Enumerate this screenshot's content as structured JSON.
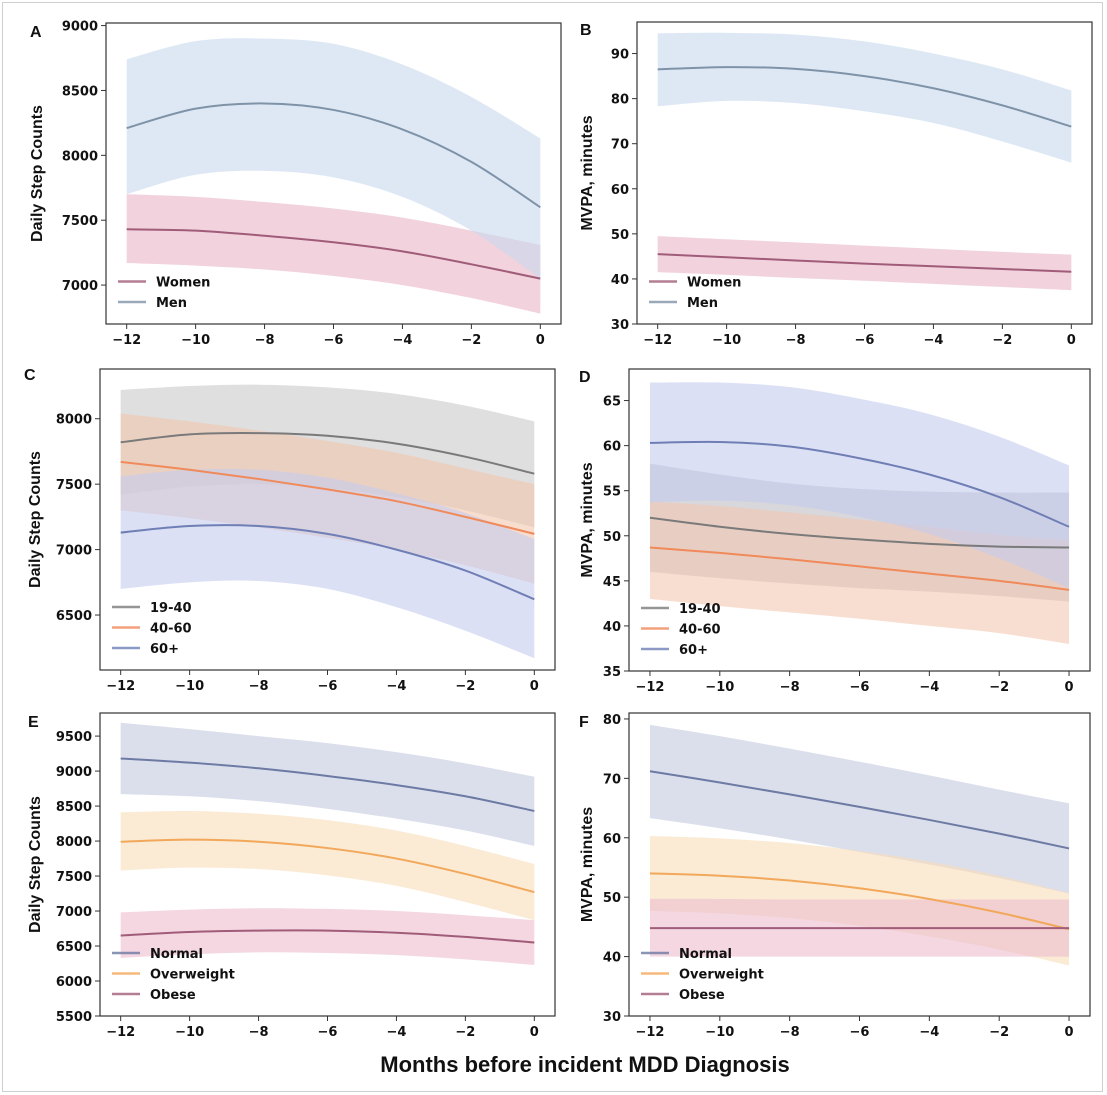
{
  "figure": {
    "xlabel": "Months before incident MDD Diagnosis"
  },
  "chart_data": [
    {
      "panel": "A",
      "type": "line",
      "ylabel": "Daily Step Counts",
      "xlabel": "",
      "xlim": [
        -12.6,
        0.6
      ],
      "ylim": [
        6700,
        9020
      ],
      "xticks": [
        -12,
        -10,
        -8,
        -6,
        -4,
        -2,
        0
      ],
      "xtick_labels": [
        "−12",
        "−10",
        "−8",
        "−6",
        "−4",
        "−2",
        "0"
      ],
      "yticks": [
        7000,
        7500,
        8000,
        8500,
        9000
      ],
      "legend": "lower-left",
      "x": [
        -12,
        -10,
        -8,
        -6,
        -4,
        -2,
        0
      ],
      "series": [
        {
          "name": "Women",
          "color": "#a05c78",
          "band_color": "#e8b4c6",
          "values": [
            7430,
            7420,
            7380,
            7330,
            7260,
            7160,
            7050
          ],
          "lower": [
            7170,
            7150,
            7120,
            7070,
            7000,
            6900,
            6780
          ],
          "upper": [
            7700,
            7680,
            7640,
            7590,
            7520,
            7420,
            7310
          ]
        },
        {
          "name": "Men",
          "color": "#7f93a8",
          "band_color": "#c8d8ee",
          "values": [
            8210,
            8360,
            8400,
            8350,
            8200,
            7950,
            7600
          ],
          "lower": [
            7700,
            7850,
            7880,
            7830,
            7680,
            7420,
            7050
          ],
          "upper": [
            8740,
            8880,
            8900,
            8860,
            8700,
            8450,
            8130
          ]
        }
      ]
    },
    {
      "panel": "B",
      "type": "line",
      "ylabel": "MVPA, minutes",
      "xlabel": "",
      "xlim": [
        -12.6,
        0.6
      ],
      "ylim": [
        30,
        97
      ],
      "xticks": [
        -12,
        -10,
        -8,
        -6,
        -4,
        -2,
        0
      ],
      "xtick_labels": [
        "−12",
        "−10",
        "−8",
        "−6",
        "−4",
        "−2",
        "0"
      ],
      "yticks": [
        30,
        40,
        50,
        60,
        70,
        80,
        90
      ],
      "legend": "lower-left",
      "x": [
        -12,
        -10,
        -8,
        -6,
        -4,
        -2,
        0
      ],
      "series": [
        {
          "name": "Women",
          "color": "#a05c78",
          "band_color": "#e8b4c6",
          "values": [
            45.5,
            44.8,
            44.1,
            43.4,
            42.8,
            42.2,
            41.6
          ],
          "lower": [
            41.5,
            40.9,
            40.2,
            39.6,
            38.9,
            38.2,
            37.5
          ],
          "upper": [
            49.5,
            48.8,
            48.1,
            47.4,
            46.7,
            46.0,
            45.4
          ]
        },
        {
          "name": "Men",
          "color": "#7f93a8",
          "band_color": "#c8d8ee",
          "values": [
            86.5,
            87.0,
            86.6,
            85.0,
            82.3,
            78.5,
            73.8
          ],
          "lower": [
            78.3,
            79.5,
            79.0,
            77.2,
            74.6,
            70.5,
            65.8
          ],
          "upper": [
            94.5,
            94.6,
            94.2,
            92.7,
            90.0,
            86.5,
            81.8
          ]
        }
      ]
    },
    {
      "panel": "C",
      "type": "line",
      "ylabel": "Daily Step Counts",
      "xlabel": "",
      "xlim": [
        -12.6,
        0.6
      ],
      "ylim": [
        6080,
        8380
      ],
      "xticks": [
        -12,
        -10,
        -8,
        -6,
        -4,
        -2,
        0
      ],
      "xtick_labels": [
        "−12",
        "−10",
        "−8",
        "−6",
        "−4",
        "−2",
        "0"
      ],
      "yticks": [
        6500,
        7000,
        7500,
        8000
      ],
      "legend": "lower-left",
      "x": [
        -12,
        -10,
        -8,
        -6,
        -4,
        -2,
        0
      ],
      "series": [
        {
          "name": "19-40",
          "color": "#7a7a7a",
          "band_color": "#c9c9c9",
          "values": [
            7820,
            7880,
            7890,
            7870,
            7810,
            7710,
            7580
          ],
          "lower": [
            7420,
            7480,
            7500,
            7470,
            7400,
            7300,
            7170
          ],
          "upper": [
            8220,
            8250,
            8260,
            8240,
            8190,
            8100,
            7980
          ]
        },
        {
          "name": "40-60",
          "color": "#f08a5a",
          "band_color": "#f2c7ae",
          "values": [
            7670,
            7610,
            7540,
            7460,
            7370,
            7250,
            7120
          ],
          "lower": [
            7300,
            7240,
            7170,
            7090,
            7000,
            6880,
            6740
          ],
          "upper": [
            8040,
            7980,
            7910,
            7830,
            7740,
            7620,
            7500
          ]
        },
        {
          "name": "60+",
          "color": "#6f7fb5",
          "band_color": "#c5cbee",
          "values": [
            7130,
            7180,
            7180,
            7120,
            7000,
            6840,
            6620
          ],
          "lower": [
            6700,
            6750,
            6760,
            6700,
            6560,
            6380,
            6170
          ],
          "upper": [
            7560,
            7610,
            7610,
            7550,
            7430,
            7280,
            7080
          ]
        }
      ]
    },
    {
      "panel": "D",
      "type": "line",
      "ylabel": "MVPA, minutes",
      "xlabel": "",
      "xlim": [
        -12.6,
        0.6
      ],
      "ylim": [
        35,
        68.5
      ],
      "xticks": [
        -12,
        -10,
        -8,
        -6,
        -4,
        -2,
        0
      ],
      "xtick_labels": [
        "−12",
        "−10",
        "−8",
        "−6",
        "−4",
        "−2",
        "0"
      ],
      "yticks": [
        35,
        40,
        45,
        50,
        55,
        60,
        65
      ],
      "legend": "lower-left",
      "x": [
        -12,
        -10,
        -8,
        -6,
        -4,
        -2,
        0
      ],
      "series": [
        {
          "name": "19-40",
          "color": "#7a7a7a",
          "band_color": "#bdbdc4",
          "values": [
            52.0,
            51.0,
            50.2,
            49.6,
            49.1,
            48.8,
            48.7
          ],
          "lower": [
            46.0,
            45.3,
            44.7,
            44.2,
            43.8,
            43.3,
            42.7
          ],
          "upper": [
            58.0,
            56.8,
            55.8,
            55.2,
            54.9,
            54.8,
            54.8
          ]
        },
        {
          "name": "40-60",
          "color": "#f08a5a",
          "band_color": "#f4c8b0",
          "values": [
            48.7,
            48.1,
            47.4,
            46.6,
            45.8,
            45.0,
            44.0
          ],
          "lower": [
            43.0,
            42.2,
            41.5,
            40.8,
            40.0,
            39.2,
            38.0
          ],
          "upper": [
            53.8,
            53.3,
            52.6,
            51.8,
            51.0,
            50.1,
            49.5
          ]
        },
        {
          "name": "60+",
          "color": "#6f7fb5",
          "band_color": "#c5cbee",
          "values": [
            60.3,
            60.4,
            59.9,
            58.6,
            56.8,
            54.3,
            51.0
          ],
          "lower": [
            53.7,
            53.9,
            53.4,
            52.1,
            50.2,
            47.5,
            44.2
          ],
          "upper": [
            67.0,
            67.0,
            66.5,
            65.2,
            63.5,
            61.0,
            57.8
          ]
        }
      ]
    },
    {
      "panel": "E",
      "type": "line",
      "ylabel": "Daily Step Counts",
      "xlabel": "",
      "xlim": [
        -12.6,
        0.6
      ],
      "ylim": [
        5500,
        9830
      ],
      "xticks": [
        -12,
        -10,
        -8,
        -6,
        -4,
        -2,
        0
      ],
      "xtick_labels": [
        "−12",
        "−10",
        "−8",
        "−6",
        "−4",
        "−2",
        "0"
      ],
      "yticks": [
        5500,
        6000,
        6500,
        7000,
        7500,
        8000,
        8500,
        9000,
        9500
      ],
      "legend": "lower-left",
      "x": [
        -12,
        -10,
        -8,
        -6,
        -4,
        -2,
        0
      ],
      "series": [
        {
          "name": "Normal",
          "color": "#6d7aa3",
          "band_color": "#c3c9e0",
          "values": [
            9180,
            9120,
            9040,
            8930,
            8800,
            8640,
            8430
          ],
          "lower": [
            8670,
            8640,
            8570,
            8460,
            8320,
            8150,
            7930
          ],
          "upper": [
            9690,
            9600,
            9500,
            9400,
            9270,
            9110,
            8920
          ]
        },
        {
          "name": "Overweight",
          "color": "#f2a85a",
          "band_color": "#f9dcb8",
          "values": [
            7990,
            8020,
            7990,
            7900,
            7750,
            7530,
            7270
          ],
          "lower": [
            7580,
            7620,
            7600,
            7510,
            7360,
            7130,
            6870
          ],
          "upper": [
            8410,
            8430,
            8390,
            8300,
            8150,
            7930,
            7670
          ]
        },
        {
          "name": "Obese",
          "color": "#a05c78",
          "band_color": "#ecbccd",
          "values": [
            6650,
            6700,
            6720,
            6720,
            6690,
            6630,
            6550
          ],
          "lower": [
            6330,
            6380,
            6410,
            6400,
            6370,
            6310,
            6230
          ],
          "upper": [
            6980,
            7020,
            7040,
            7030,
            7000,
            6940,
            6870
          ]
        }
      ]
    },
    {
      "panel": "F",
      "type": "line",
      "ylabel": "MVPA, minutes",
      "xlabel": "",
      "xlim": [
        -12.6,
        0.6
      ],
      "ylim": [
        30,
        81
      ],
      "xticks": [
        -12,
        -10,
        -8,
        -6,
        -4,
        -2,
        0
      ],
      "xtick_labels": [
        "−12",
        "−10",
        "−8",
        "−6",
        "−4",
        "−2",
        "0"
      ],
      "yticks": [
        30,
        40,
        50,
        60,
        70,
        80
      ],
      "legend": "lower-left",
      "x": [
        -12,
        -10,
        -8,
        -6,
        -4,
        -2,
        0
      ],
      "series": [
        {
          "name": "Normal",
          "color": "#6d7aa3",
          "band_color": "#c3c9e0",
          "values": [
            71.2,
            69.3,
            67.3,
            65.2,
            63.0,
            60.7,
            58.2
          ],
          "lower": [
            63.3,
            61.6,
            59.7,
            57.6,
            55.5,
            53.2,
            50.6
          ],
          "upper": [
            79.0,
            77.1,
            75.0,
            72.8,
            70.5,
            68.1,
            65.8
          ]
        },
        {
          "name": "Overweight",
          "color": "#f2a85a",
          "band_color": "#f9dcb8",
          "values": [
            54.0,
            53.6,
            52.8,
            51.5,
            49.7,
            47.4,
            44.6
          ],
          "lower": [
            47.7,
            47.3,
            46.5,
            45.2,
            43.4,
            41.2,
            38.5
          ],
          "upper": [
            60.3,
            59.9,
            59.1,
            57.8,
            56.0,
            53.6,
            50.7
          ]
        },
        {
          "name": "Obese",
          "color": "#a05c78",
          "band_color": "#ecbccd",
          "values": [
            44.8,
            44.8,
            44.8,
            44.8,
            44.8,
            44.8,
            44.8
          ],
          "lower": [
            40.0,
            40.0,
            40.0,
            40.0,
            40.0,
            40.0,
            40.0
          ],
          "upper": [
            49.7,
            49.7,
            49.6,
            49.6,
            49.6,
            49.6,
            49.6
          ]
        }
      ]
    }
  ]
}
